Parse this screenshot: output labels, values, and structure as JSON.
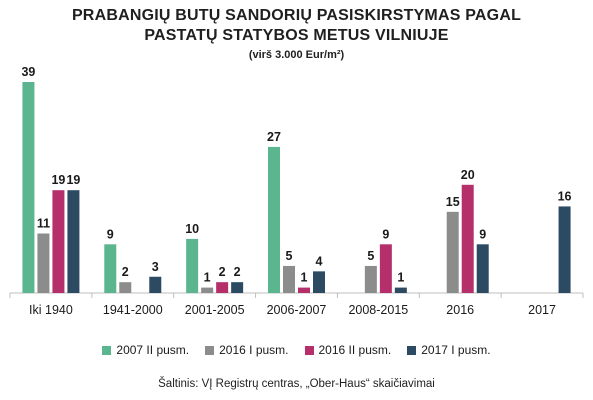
{
  "chart_data": {
    "type": "bar",
    "title": "PRABANGIŲ BUTŲ SANDORIŲ PASISKIRSTYMAS PAGAL",
    "title_line2": "PASTATŲ STATYBOS METUS VILNIUJE",
    "subtitle": "(virš 3.000 Eur/m²)",
    "source": "Šaltinis: VĮ Registrų centras, „Ober-Haus“ skaičiavimai",
    "categories": [
      "Iki 1940",
      "1941-2000",
      "2001-2005",
      "2006-2007",
      "2008-2015",
      "2016",
      "2017"
    ],
    "series": [
      {
        "name": "2007 II pusm.",
        "color": "#5bb58f",
        "values": [
          39,
          9,
          10,
          27,
          null,
          null,
          null
        ]
      },
      {
        "name": "2016 I pusm.",
        "color": "#8c8c8c",
        "values": [
          11,
          2,
          1,
          5,
          5,
          15,
          null
        ]
      },
      {
        "name": "2016 II pusm.",
        "color": "#b5306b",
        "values": [
          19,
          null,
          2,
          1,
          9,
          20,
          null
        ]
      },
      {
        "name": "2017 I pusm.",
        "color": "#2c4a62",
        "values": [
          19,
          3,
          2,
          4,
          1,
          9,
          16
        ]
      }
    ],
    "ylim": [
      0,
      39
    ],
    "grid": false,
    "legend_position": "bottom"
  }
}
